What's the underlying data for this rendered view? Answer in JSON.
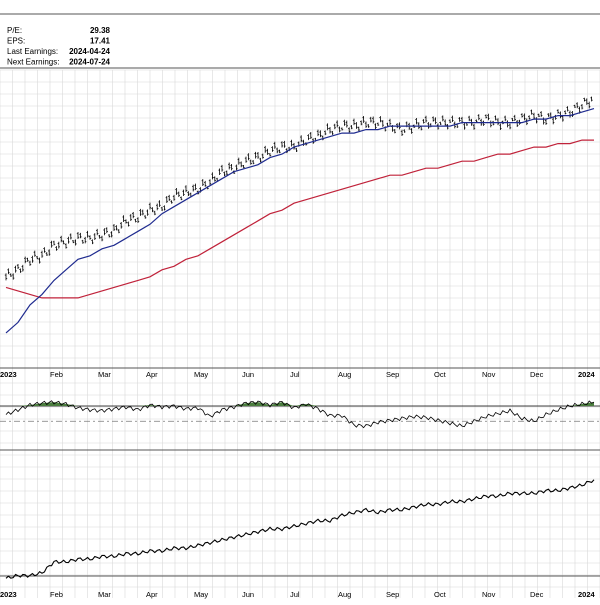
{
  "fundamentals": [
    {
      "label": "P/E:",
      "value": "29.38"
    },
    {
      "label": "EPS:",
      "value": "17.41"
    },
    {
      "label": "Last Earnings:",
      "value": "2024-04-24"
    },
    {
      "label": "Next Earnings:",
      "value": "2024-07-24"
    }
  ],
  "colors": {
    "background": "#ffffff",
    "grid": "#d8d8d8",
    "price_bars": "#000000",
    "sma_50": "#1f2b8f",
    "sma_200": "#c0223a",
    "relative_strength_fill": "#4a7d3e",
    "frame": "#555555"
  },
  "chart_data": [
    {
      "type": "line",
      "panel": "price",
      "style": "ohlc-bars",
      "series": [
        {
          "key": "price",
          "values": [
            56,
            58,
            61,
            62,
            65,
            66,
            67,
            67,
            68,
            69,
            72,
            73,
            75,
            76,
            79,
            80,
            81,
            83,
            86,
            87,
            89,
            90,
            92,
            93,
            93,
            95,
            96,
            98,
            99,
            99,
            100,
            100,
            99,
            98,
            99,
            100,
            100,
            100,
            100,
            100,
            101,
            100,
            100,
            101,
            102,
            101,
            102,
            103,
            105,
            107
          ]
        },
        {
          "key": "sma_50",
          "values": [
            40,
            43,
            48,
            51,
            55,
            58,
            61,
            62,
            64,
            65,
            67,
            69,
            71,
            74,
            76,
            78,
            80,
            82,
            84,
            86,
            87,
            88,
            90,
            91,
            93,
            94,
            95,
            96,
            97,
            97,
            98,
            98,
            99,
            99,
            99,
            99,
            99,
            99,
            100,
            100,
            100,
            100,
            100,
            100,
            101,
            101,
            102,
            102,
            103,
            104
          ]
        },
        {
          "key": "sma_200",
          "values": [
            53,
            52,
            51,
            50,
            50,
            50,
            50,
            51,
            52,
            53,
            54,
            55,
            56,
            58,
            59,
            61,
            62,
            64,
            66,
            68,
            70,
            72,
            74,
            75,
            77,
            78,
            79,
            80,
            81,
            82,
            83,
            84,
            85,
            85,
            86,
            87,
            87,
            88,
            89,
            89,
            90,
            91,
            91,
            92,
            93,
            93,
            94,
            94,
            95,
            95
          ]
        }
      ],
      "x_labels": [
        {
          "text": "2023",
          "i": 0,
          "bold": true
        },
        {
          "text": "Feb",
          "i": 4
        },
        {
          "text": "Mar",
          "i": 8
        },
        {
          "text": "Apr",
          "i": 12
        },
        {
          "text": "May",
          "i": 16
        },
        {
          "text": "Jun",
          "i": 20
        },
        {
          "text": "Jul",
          "i": 24
        },
        {
          "text": "Aug",
          "i": 28
        },
        {
          "text": "Sep",
          "i": 32
        },
        {
          "text": "Oct",
          "i": 36
        },
        {
          "text": "Nov",
          "i": 40
        },
        {
          "text": "Dec",
          "i": 44
        },
        {
          "text": "2024",
          "i": 48,
          "bold": true
        }
      ],
      "ylim": [
        30,
        115
      ],
      "grid": true
    },
    {
      "type": "area",
      "panel": "momentum",
      "series": [
        {
          "key": "momentum",
          "values": [
            57,
            62,
            67,
            69,
            70,
            68,
            64,
            62,
            61,
            63,
            65,
            62,
            67,
            65,
            66,
            63,
            64,
            55,
            62,
            65,
            69,
            70,
            67,
            70,
            64,
            68,
            63,
            56,
            56,
            46,
            45,
            49,
            51,
            53,
            55,
            54,
            51,
            48,
            45,
            50,
            55,
            58,
            61,
            53,
            50,
            57,
            62,
            66,
            68,
            70
          ]
        }
      ],
      "upper_line": 66,
      "mid_line": 50,
      "ylim": [
        20,
        90
      ],
      "grid": true
    },
    {
      "type": "line",
      "panel": "relative_strength",
      "series": [
        {
          "key": "relative_strength",
          "values": [
            30,
            31,
            31,
            32,
            36,
            36,
            37,
            37,
            38,
            38,
            39,
            39,
            40,
            40,
            41,
            41,
            42,
            43,
            44,
            45,
            46,
            47,
            48,
            48,
            49,
            50,
            51,
            51,
            53,
            54,
            55,
            54,
            55,
            55,
            56,
            57,
            57,
            58,
            58,
            59,
            60,
            60,
            61,
            61,
            61,
            62,
            62,
            63,
            64,
            66
          ]
        }
      ],
      "ylim": [
        25,
        75
      ],
      "grid": true
    }
  ]
}
